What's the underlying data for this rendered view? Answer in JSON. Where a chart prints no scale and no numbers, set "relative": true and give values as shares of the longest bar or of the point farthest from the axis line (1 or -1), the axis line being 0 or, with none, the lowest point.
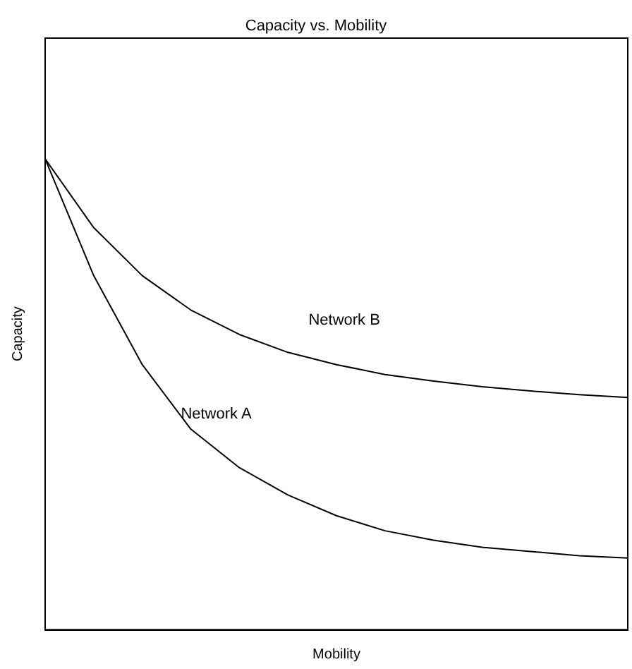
{
  "chart_data": {
    "type": "line",
    "title": "Capacity vs. Mobility",
    "xlabel": "Mobility",
    "ylabel": "Capacity",
    "relative": true,
    "legend": false,
    "grid": false,
    "marker": "none",
    "line_style": "solid",
    "categories": [
      null,
      null,
      null,
      null,
      null,
      null,
      null,
      null,
      null,
      null,
      null,
      null,
      null
    ],
    "series": [
      {
        "name": "Network A",
        "color": "#000000",
        "values": [
          1.0,
          0.752,
          0.563,
          0.426,
          0.344,
          0.286,
          0.242,
          0.21,
          0.19,
          0.175,
          0.166,
          0.157,
          0.152
        ]
      },
      {
        "name": "Network B",
        "color": "#000000",
        "values": [
          1.0,
          0.854,
          0.752,
          0.679,
          0.627,
          0.589,
          0.563,
          0.542,
          0.528,
          0.516,
          0.507,
          0.499,
          0.493
        ]
      }
    ]
  }
}
